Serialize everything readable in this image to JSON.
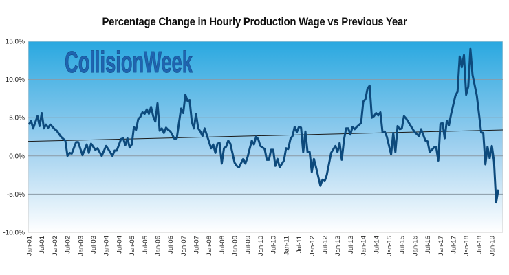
{
  "chart_data": {
    "type": "line",
    "title": "Percentage Change in Hourly Production Wage vs Previous Year",
    "watermark": "CollisionWeek",
    "xlabel": "",
    "ylabel": "",
    "ylim": [
      -10,
      15
    ],
    "y_ticks": [
      {
        "value": 15,
        "label": "15.0%"
      },
      {
        "value": 10,
        "label": "10.0%"
      },
      {
        "value": 5,
        "label": "5.0%"
      },
      {
        "value": 0,
        "label": "0.0%"
      },
      {
        "value": -5,
        "label": "-5.0%"
      },
      {
        "value": -10,
        "label": "-10.0%"
      }
    ],
    "x_ticks": [
      "Jan-01",
      "Jul-01",
      "Jan-02",
      "Jul-02",
      "Jan-03",
      "Jul-03",
      "Jan-04",
      "Jul-04",
      "Jan-05",
      "Jul-05",
      "Jan-06",
      "Jul-06",
      "Jan-07",
      "Jul-07",
      "Jan-08",
      "Jul-08",
      "Jan-09",
      "Jul-09",
      "Jan-10",
      "Jul-10",
      "Jan-11",
      "Jul-11",
      "Jan-12",
      "Jul-12",
      "Jan-13",
      "Jul-13",
      "Jan-14",
      "Jul-14",
      "Jan-15",
      "Jul-15",
      "Jan-16",
      "Jul-16",
      "Jan-17",
      "Jul-17",
      "Jan-18",
      "Jul-18",
      "Jan-19"
    ],
    "grid": true,
    "legend": "none",
    "colors": {
      "line": "#0d4a7c",
      "trend": "#1a1a1a",
      "bg_top": "#29a8e0",
      "bg_bottom": "#ffffff",
      "watermark": "#1f64b0"
    },
    "series": [
      {
        "points": [
          [
            "2001-01",
            4.1
          ],
          [
            "2001-02",
            4.6
          ],
          [
            "2001-03",
            3.6
          ],
          [
            "2001-05",
            5.2
          ],
          [
            "2001-06",
            3.9
          ],
          [
            "2001-07",
            5.6
          ],
          [
            "2001-08",
            3.6
          ],
          [
            "2001-09",
            4.1
          ],
          [
            "2001-10",
            3.7
          ],
          [
            "2001-11",
            4.1
          ],
          [
            "2002-01",
            3.5
          ],
          [
            "2002-02",
            3.3
          ],
          [
            "2002-04",
            2.5
          ],
          [
            "2002-06",
            2.0
          ],
          [
            "2002-07",
            0.0
          ],
          [
            "2002-08",
            0.4
          ],
          [
            "2002-09",
            0.3
          ],
          [
            "2002-11",
            1.8
          ],
          [
            "2002-12",
            1.8
          ],
          [
            "2003-02",
            0.1
          ],
          [
            "2003-04",
            1.5
          ],
          [
            "2003-05",
            0.4
          ],
          [
            "2003-06",
            1.6
          ],
          [
            "2003-08",
            0.8
          ],
          [
            "2003-09",
            1.0
          ],
          [
            "2003-11",
            0.0
          ],
          [
            "2004-01",
            1.3
          ],
          [
            "2004-02",
            0.9
          ],
          [
            "2004-04",
            0.0
          ],
          [
            "2004-05",
            0.7
          ],
          [
            "2004-06",
            0.7
          ],
          [
            "2004-08",
            2.2
          ],
          [
            "2004-09",
            2.3
          ],
          [
            "2004-10",
            1.4
          ],
          [
            "2004-11",
            2.3
          ],
          [
            "2004-12",
            1.1
          ],
          [
            "2005-01",
            1.5
          ],
          [
            "2005-02",
            3.8
          ],
          [
            "2005-03",
            3.4
          ],
          [
            "2005-04",
            4.8
          ],
          [
            "2005-05",
            5.1
          ],
          [
            "2005-06",
            5.7
          ],
          [
            "2005-07",
            5.5
          ],
          [
            "2005-08",
            6.1
          ],
          [
            "2005-09",
            5.5
          ],
          [
            "2005-10",
            6.4
          ],
          [
            "2005-11",
            5.2
          ],
          [
            "2005-12",
            4.5
          ],
          [
            "2006-01",
            6.9
          ],
          [
            "2006-02",
            3.3
          ],
          [
            "2006-03",
            3.6
          ],
          [
            "2006-04",
            3.0
          ],
          [
            "2006-05",
            3.7
          ],
          [
            "2006-06",
            3.4
          ],
          [
            "2006-07",
            3.2
          ],
          [
            "2006-09",
            2.2
          ],
          [
            "2006-10",
            2.3
          ],
          [
            "2006-12",
            6.2
          ],
          [
            "2007-01",
            5.6
          ],
          [
            "2007-02",
            8.0
          ],
          [
            "2007-03",
            7.2
          ],
          [
            "2007-04",
            7.3
          ],
          [
            "2007-05",
            4.5
          ],
          [
            "2007-06",
            3.6
          ],
          [
            "2007-07",
            5.5
          ],
          [
            "2007-08",
            3.6
          ],
          [
            "2007-09",
            3.2
          ],
          [
            "2007-10",
            2.6
          ],
          [
            "2007-11",
            3.6
          ],
          [
            "2008-01",
            1.9
          ],
          [
            "2008-02",
            1.0
          ],
          [
            "2008-03",
            1.5
          ],
          [
            "2008-04",
            0.4
          ],
          [
            "2008-05",
            1.6
          ],
          [
            "2008-06",
            1.7
          ],
          [
            "2008-07",
            -1.0
          ],
          [
            "2008-08",
            1.0
          ],
          [
            "2008-09",
            1.2
          ],
          [
            "2008-10",
            2.0
          ],
          [
            "2008-11",
            1.6
          ],
          [
            "2009-01",
            -0.9
          ],
          [
            "2009-02",
            -1.3
          ],
          [
            "2009-03",
            -1.5
          ],
          [
            "2009-05",
            -0.4
          ],
          [
            "2009-06",
            -1.0
          ],
          [
            "2009-07",
            -0.2
          ],
          [
            "2009-08",
            0.9
          ],
          [
            "2009-09",
            2.0
          ],
          [
            "2009-10",
            1.5
          ],
          [
            "2009-11",
            2.5
          ],
          [
            "2009-12",
            2.2
          ],
          [
            "2010-01",
            1.3
          ],
          [
            "2010-03",
            0.9
          ],
          [
            "2010-04",
            -0.5
          ],
          [
            "2010-05",
            -0.5
          ],
          [
            "2010-06",
            0.8
          ],
          [
            "2010-07",
            0.8
          ],
          [
            "2010-08",
            -1.3
          ],
          [
            "2010-09",
            -0.4
          ],
          [
            "2010-10",
            -1.5
          ],
          [
            "2010-12",
            -0.6
          ],
          [
            "2011-01",
            1.0
          ],
          [
            "2011-02",
            0.9
          ],
          [
            "2011-03",
            2.2
          ],
          [
            "2011-04",
            2.6
          ],
          [
            "2011-05",
            3.8
          ],
          [
            "2011-06",
            3.1
          ],
          [
            "2011-07",
            3.8
          ],
          [
            "2011-08",
            3.7
          ],
          [
            "2011-09",
            0.5
          ],
          [
            "2011-10",
            3.2
          ],
          [
            "2011-11",
            0.5
          ],
          [
            "2011-12",
            0.5
          ],
          [
            "2012-01",
            -2.1
          ],
          [
            "2012-02",
            -0.4
          ],
          [
            "2012-03",
            -1.5
          ],
          [
            "2012-05",
            -3.9
          ],
          [
            "2012-06",
            -3.1
          ],
          [
            "2012-07",
            -3.3
          ],
          [
            "2012-08",
            -2.5
          ],
          [
            "2012-10",
            0.4
          ],
          [
            "2012-12",
            1.3
          ],
          [
            "2013-01",
            0.5
          ],
          [
            "2013-02",
            1.7
          ],
          [
            "2013-03",
            -0.5
          ],
          [
            "2013-04",
            2.1
          ],
          [
            "2013-05",
            3.6
          ],
          [
            "2013-06",
            3.6
          ],
          [
            "2013-07",
            2.8
          ],
          [
            "2013-08",
            3.8
          ],
          [
            "2013-09",
            3.5
          ],
          [
            "2013-10",
            3.8
          ],
          [
            "2013-12",
            4.3
          ],
          [
            "2014-01",
            7.1
          ],
          [
            "2014-02",
            7.4
          ],
          [
            "2014-03",
            8.8
          ],
          [
            "2014-04",
            9.2
          ],
          [
            "2014-05",
            5.0
          ],
          [
            "2014-06",
            5.2
          ],
          [
            "2014-07",
            5.6
          ],
          [
            "2014-08",
            5.3
          ],
          [
            "2014-09",
            5.7
          ],
          [
            "2014-10",
            3.1
          ],
          [
            "2014-11",
            3.2
          ],
          [
            "2014-12",
            2.5
          ],
          [
            "2015-02",
            0.2
          ],
          [
            "2015-03",
            3.0
          ],
          [
            "2015-04",
            0.5
          ],
          [
            "2015-05",
            3.9
          ],
          [
            "2015-06",
            3.5
          ],
          [
            "2015-07",
            3.6
          ],
          [
            "2015-08",
            5.2
          ],
          [
            "2015-09",
            4.9
          ],
          [
            "2015-11",
            4.0
          ],
          [
            "2016-01",
            3.1
          ],
          [
            "2016-03",
            2.6
          ],
          [
            "2016-04",
            3.5
          ],
          [
            "2016-06",
            2.0
          ],
          [
            "2016-07",
            1.9
          ],
          [
            "2016-08",
            0.5
          ],
          [
            "2016-10",
            1.1
          ],
          [
            "2016-11",
            1.2
          ],
          [
            "2016-12",
            -0.6
          ],
          [
            "2017-01",
            4.2
          ],
          [
            "2017-02",
            4.3
          ],
          [
            "2017-03",
            2.3
          ],
          [
            "2017-04",
            4.6
          ],
          [
            "2017-05",
            4.0
          ],
          [
            "2017-06",
            5.5
          ],
          [
            "2017-08",
            7.9
          ],
          [
            "2017-09",
            8.4
          ],
          [
            "2017-10",
            13.0
          ],
          [
            "2017-11",
            11.6
          ],
          [
            "2017-12",
            13.2
          ],
          [
            "2018-01",
            8.0
          ],
          [
            "2018-02",
            9.1
          ],
          [
            "2018-03",
            14.0
          ],
          [
            "2018-04",
            10.6
          ],
          [
            "2018-06",
            7.9
          ],
          [
            "2018-08",
            3.1
          ],
          [
            "2018-09",
            3.0
          ],
          [
            "2018-10",
            -1.1
          ],
          [
            "2018-11",
            1.2
          ],
          [
            "2018-12",
            -0.3
          ],
          [
            "2019-01",
            1.3
          ],
          [
            "2019-02",
            -0.7
          ],
          [
            "2019-03",
            -6.1
          ],
          [
            "2019-04",
            -4.4
          ]
        ]
      }
    ],
    "trendline": {
      "type": "linear",
      "points": [
        [
          "2001-01",
          1.9
        ],
        [
          "2019-04",
          3.4
        ]
      ]
    }
  }
}
